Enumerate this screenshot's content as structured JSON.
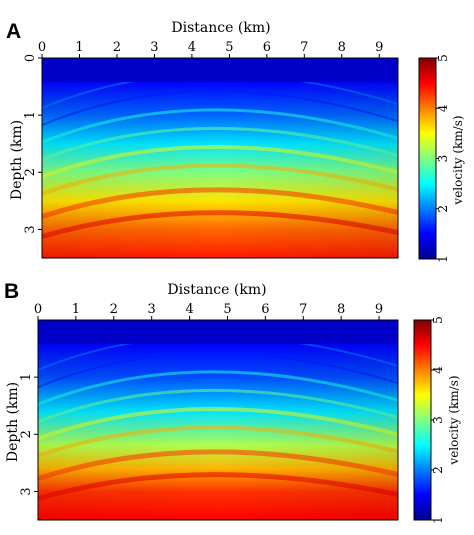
{
  "chart_data": [
    {
      "type": "heatmap",
      "panel_label": "A",
      "xlabel": "Distance (km)",
      "ylabel": "Depth (km)",
      "xlim": [
        0,
        9.5
      ],
      "ylim": [
        0,
        3.5
      ],
      "x_ticks": [
        "0",
        "1",
        "2",
        "3",
        "4",
        "5",
        "6",
        "7",
        "8",
        "9"
      ],
      "y_ticks": [
        "0",
        "1",
        "2",
        "3"
      ],
      "colorbar": {
        "label": "velocity (km/s)",
        "range": [
          1,
          5
        ],
        "ticks": [
          "1",
          "2",
          "3",
          "4",
          "5"
        ],
        "colormap": "jet"
      },
      "velocity_layers": [
        {
          "depth_km": 0.0,
          "velocity": 1.3
        },
        {
          "depth_km": 0.4,
          "velocity": 1.5
        },
        {
          "depth_km": 1.0,
          "velocity": 1.9
        },
        {
          "depth_km": 1.5,
          "velocity": 2.4
        },
        {
          "depth_km": 2.0,
          "velocity": 3.0
        },
        {
          "depth_km": 2.5,
          "velocity": 3.6
        },
        {
          "depth_km": 3.0,
          "velocity": 4.1
        },
        {
          "depth_km": 3.5,
          "velocity": 4.4
        }
      ]
    },
    {
      "type": "heatmap",
      "panel_label": "B",
      "xlabel": "Distance (km)",
      "ylabel": "Depth (km)",
      "xlim": [
        0,
        9.5
      ],
      "ylim": [
        0,
        3.5
      ],
      "x_ticks": [
        "0",
        "1",
        "2",
        "3",
        "4",
        "5",
        "6",
        "7",
        "8",
        "9"
      ],
      "y_ticks": [
        "1",
        "2",
        "3"
      ],
      "colorbar": {
        "label": "velocity (km/s)",
        "range": [
          1,
          5
        ],
        "ticks": [
          "1",
          "2",
          "3",
          "4",
          "5"
        ],
        "colormap": "jet"
      },
      "velocity_layers": [
        {
          "depth_km": 0.0,
          "velocity": 1.2
        },
        {
          "depth_km": 0.4,
          "velocity": 1.5
        },
        {
          "depth_km": 1.0,
          "velocity": 1.8
        },
        {
          "depth_km": 1.6,
          "velocity": 2.4
        },
        {
          "depth_km": 2.2,
          "velocity": 3.2
        },
        {
          "depth_km": 2.6,
          "velocity": 3.8
        },
        {
          "depth_km": 3.0,
          "velocity": 4.3
        },
        {
          "depth_km": 3.5,
          "velocity": 4.5
        }
      ]
    }
  ]
}
